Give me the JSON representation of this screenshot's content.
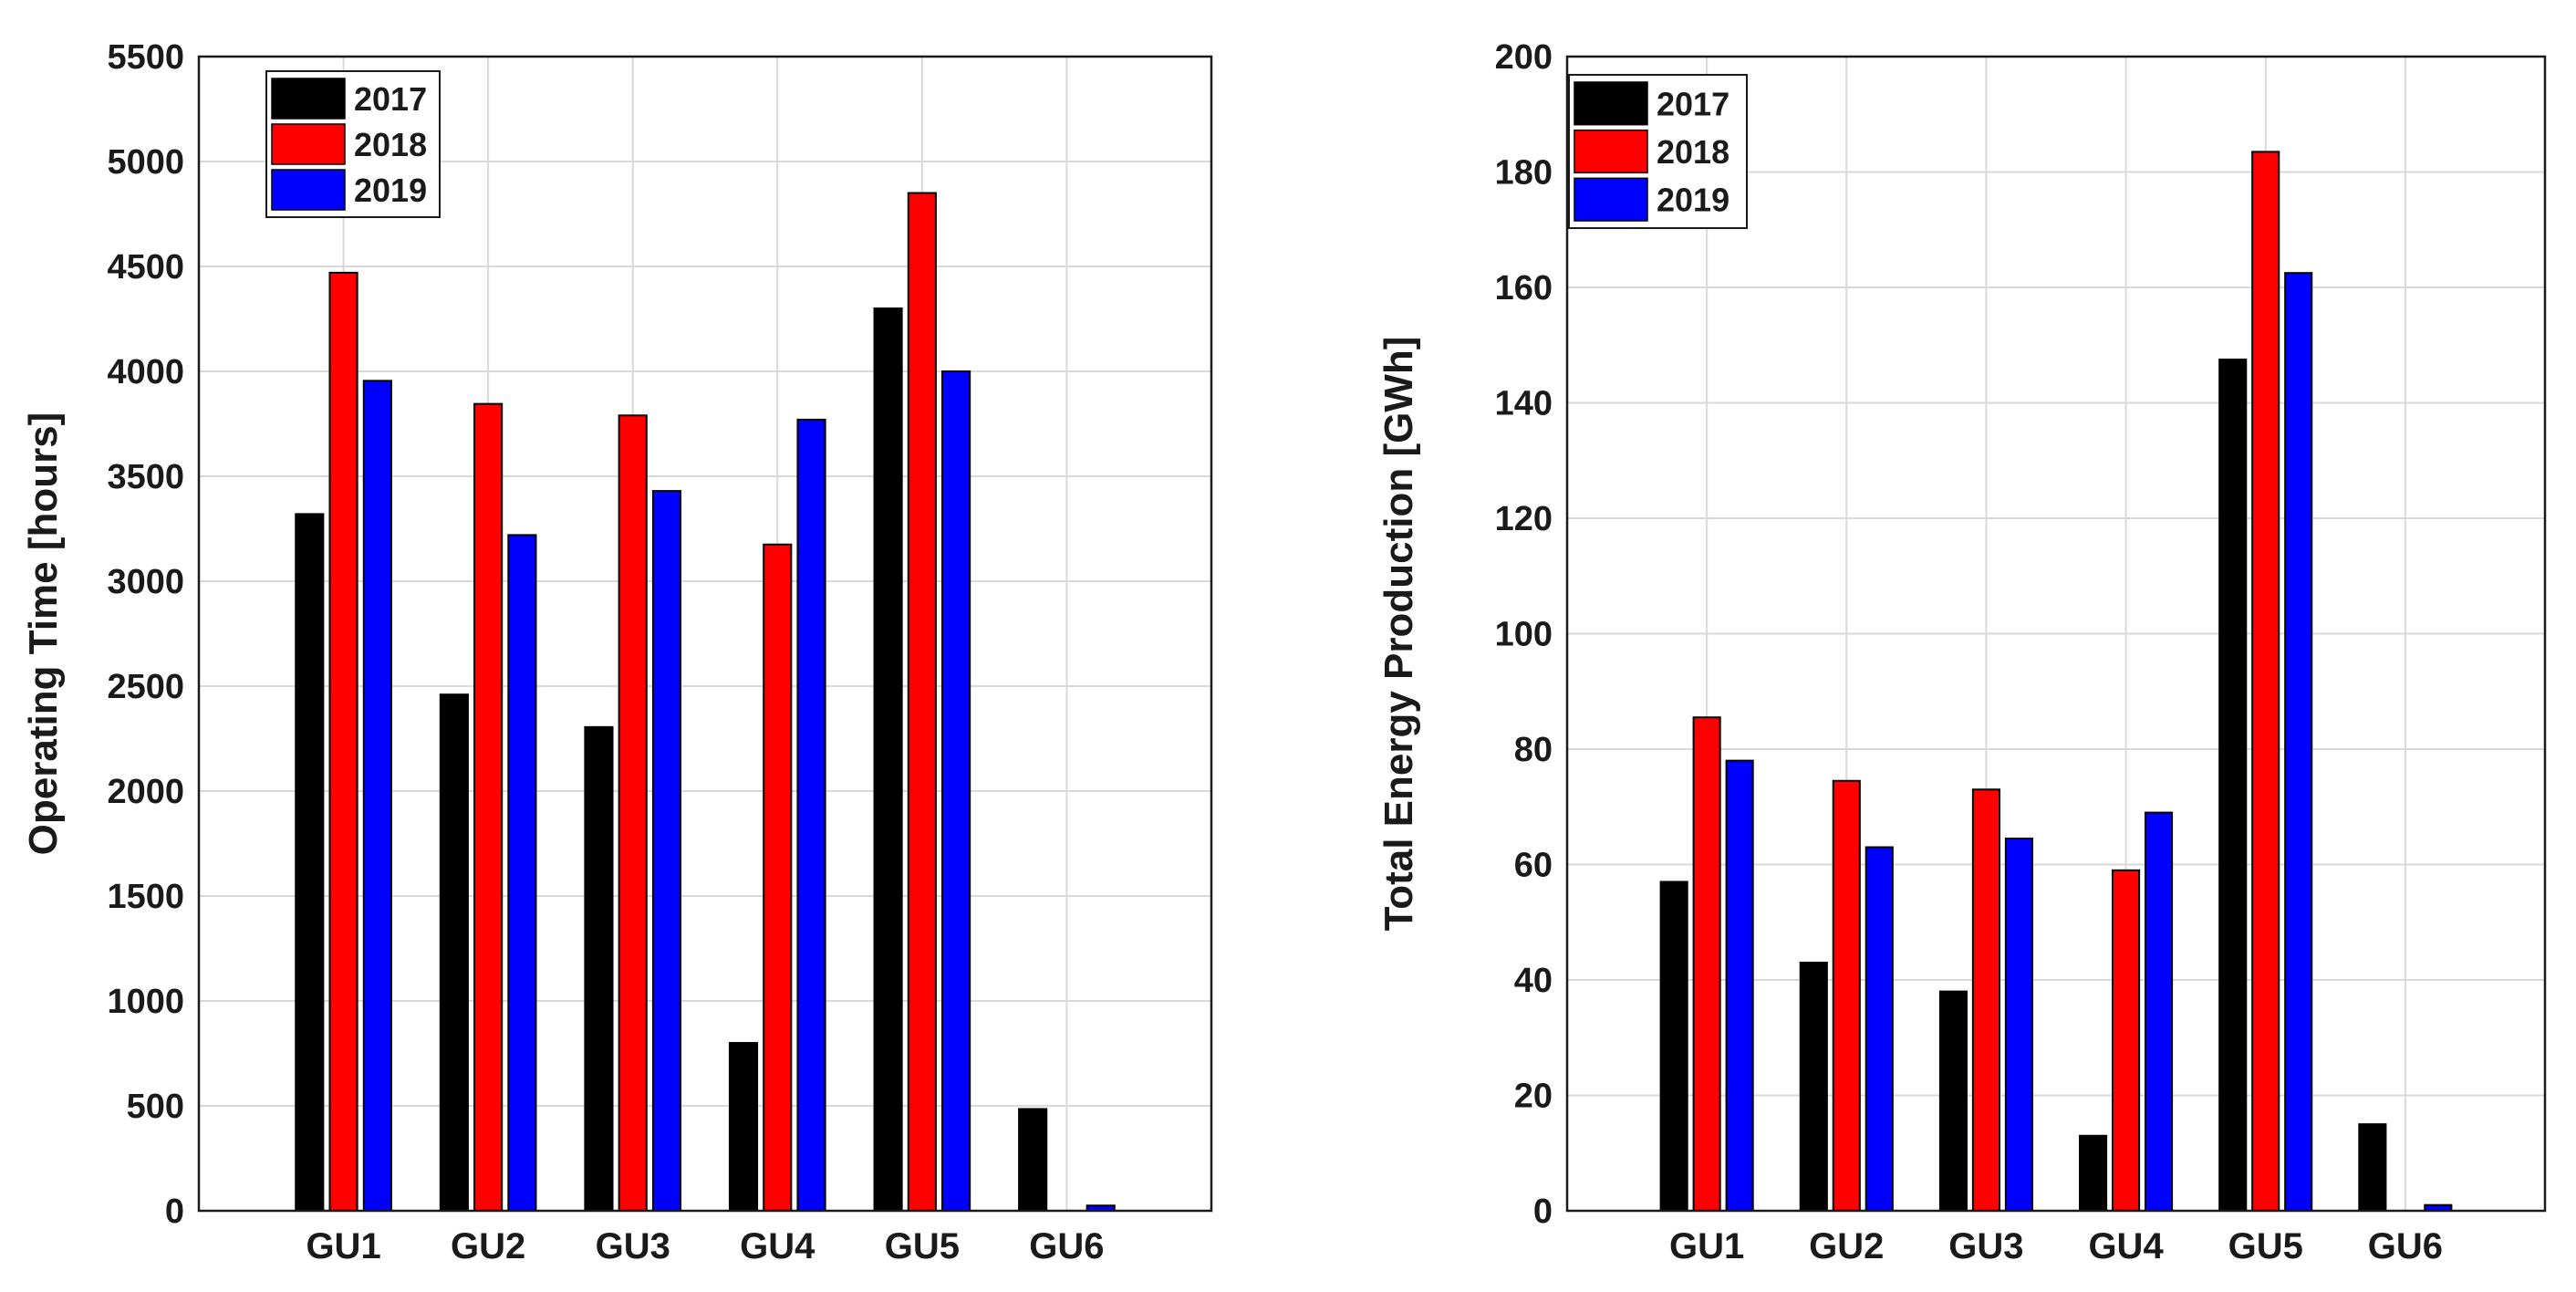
{
  "chart_data": [
    {
      "type": "bar",
      "title": "",
      "xlabel": "",
      "ylabel": "Operating Time [hours]",
      "categories": [
        "GU1",
        "GU2",
        "GU3",
        "GU4",
        "GU5",
        "GU6"
      ],
      "ylim": [
        0,
        5500
      ],
      "yticks": [
        0,
        500,
        1000,
        1500,
        2000,
        2500,
        3000,
        3500,
        4000,
        4500,
        5000,
        5500
      ],
      "grid": true,
      "legend_position": "top-left",
      "series": [
        {
          "name": "2017",
          "color": "#000000",
          "values": [
            3320,
            2460,
            2305,
            800,
            4300,
            485
          ]
        },
        {
          "name": "2018",
          "color": "#ff0000",
          "values": [
            4470,
            3845,
            3790,
            3175,
            4850,
            0
          ]
        },
        {
          "name": "2019",
          "color": "#0000ff",
          "values": [
            3955,
            3220,
            3430,
            3770,
            4000,
            25
          ]
        }
      ]
    },
    {
      "type": "bar",
      "title": "",
      "xlabel": "",
      "ylabel": "Total Energy Production [GWh]",
      "categories": [
        "GU1",
        "GU2",
        "GU3",
        "GU4",
        "GU5",
        "GU6"
      ],
      "ylim": [
        0,
        200
      ],
      "yticks": [
        0,
        20,
        40,
        60,
        80,
        100,
        120,
        140,
        160,
        180,
        200
      ],
      "grid": true,
      "legend_position": "top-left",
      "series": [
        {
          "name": "2017",
          "color": "#000000",
          "values": [
            57,
            43,
            38,
            13,
            147.5,
            15
          ]
        },
        {
          "name": "2018",
          "color": "#ff0000",
          "values": [
            85.5,
            74.5,
            73,
            59,
            183.5,
            0
          ]
        },
        {
          "name": "2019",
          "color": "#0000ff",
          "values": [
            78,
            63,
            64.5,
            69,
            162.5,
            1
          ]
        }
      ]
    }
  ]
}
